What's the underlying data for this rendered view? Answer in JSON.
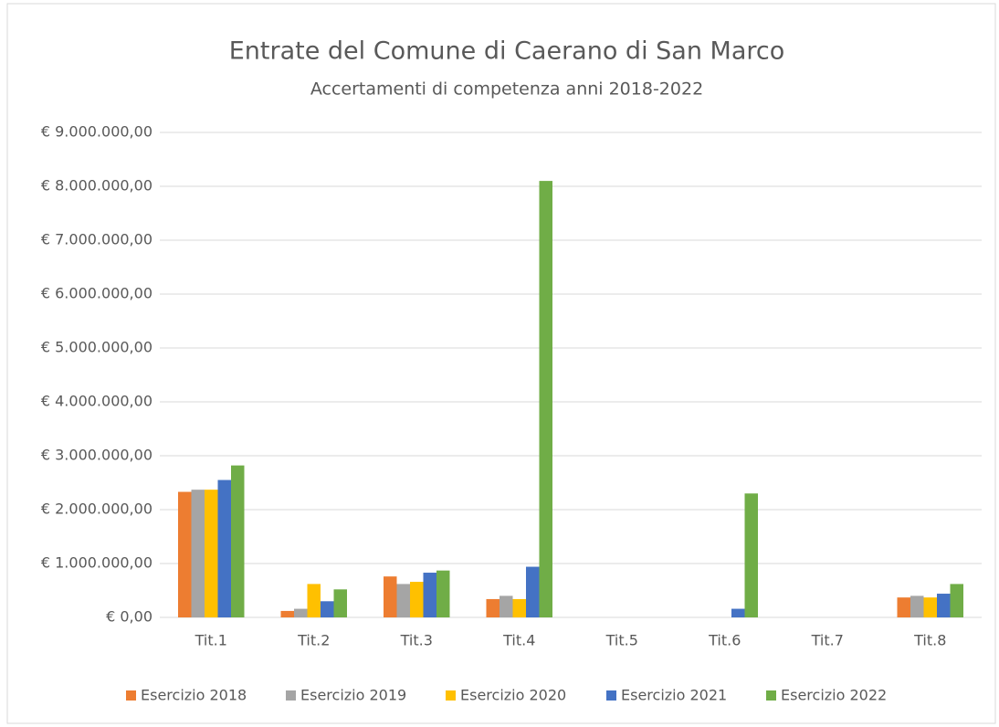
{
  "chart_data": {
    "type": "bar",
    "title": "Entrate del Comune di Caerano di San Marco",
    "subtitle": "Accertamenti di competenza anni 2018-2022",
    "categories": [
      "Tit.1",
      "Tit.2",
      "Tit.3",
      "Tit.4",
      "Tit.5",
      "Tit.6",
      "Tit.7",
      "Tit.8"
    ],
    "series": [
      {
        "name": "Esercizio 2018",
        "color": "#ed7d31",
        "values": [
          2330000,
          120000,
          760000,
          340000,
          0,
          0,
          0,
          370000
        ]
      },
      {
        "name": "Esercizio 2019",
        "color": "#a5a5a5",
        "values": [
          2370000,
          160000,
          620000,
          400000,
          0,
          0,
          0,
          400000
        ]
      },
      {
        "name": "Esercizio 2020",
        "color": "#ffc000",
        "values": [
          2370000,
          620000,
          660000,
          340000,
          0,
          0,
          0,
          370000
        ]
      },
      {
        "name": "Esercizio 2021",
        "color": "#4472c4",
        "values": [
          2550000,
          300000,
          830000,
          940000,
          0,
          160000,
          0,
          440000
        ]
      },
      {
        "name": "Esercizio 2022",
        "color": "#70ad47",
        "values": [
          2820000,
          520000,
          870000,
          8100000,
          0,
          2300000,
          0,
          620000
        ]
      }
    ],
    "ylim": [
      0,
      9000000
    ],
    "yticks": [
      {
        "value": 0,
        "label": "€ 0,00"
      },
      {
        "value": 1000000,
        "label": "€ 1.000.000,00"
      },
      {
        "value": 2000000,
        "label": "€ 2.000.000,00"
      },
      {
        "value": 3000000,
        "label": "€ 3.000.000,00"
      },
      {
        "value": 4000000,
        "label": "€ 4.000.000,00"
      },
      {
        "value": 5000000,
        "label": "€ 5.000.000,00"
      },
      {
        "value": 6000000,
        "label": "€ 6.000.000,00"
      },
      {
        "value": 7000000,
        "label": "€ 7.000.000,00"
      },
      {
        "value": 8000000,
        "label": "€ 8.000.000,00"
      },
      {
        "value": 9000000,
        "label": "€ 9.000.000,00"
      }
    ],
    "grid": true,
    "legend": "bottom"
  }
}
